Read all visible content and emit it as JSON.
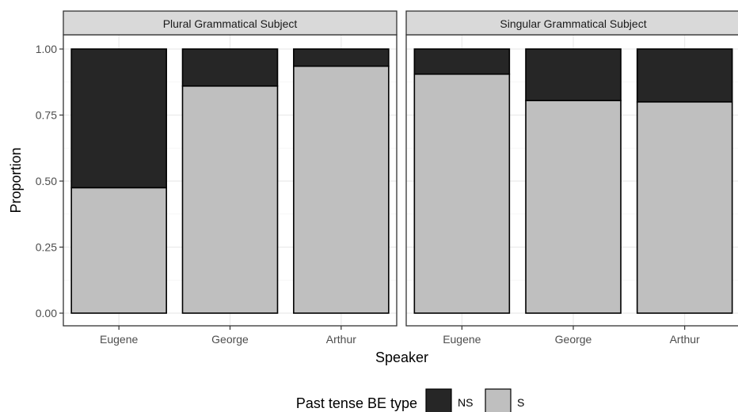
{
  "chart_data": {
    "type": "bar",
    "stacked": true,
    "xlabel": "Speaker",
    "ylabel": "Proportion",
    "ylim": [
      0,
      1
    ],
    "yticks": [
      "0.00",
      "0.25",
      "0.50",
      "0.75",
      "1.00"
    ],
    "categories": [
      "Eugene",
      "George",
      "Arthur"
    ],
    "legend": {
      "title": "Past tense BE type",
      "position": "bottom",
      "entries": [
        {
          "label": "NS",
          "color": "#262626"
        },
        {
          "label": "S",
          "color": "#bfbfbf"
        }
      ]
    },
    "panels": [
      {
        "title": "Plural Grammatical Subject",
        "series": [
          {
            "name": "S",
            "color": "#bfbfbf",
            "values": [
              0.475,
              0.86,
              0.935
            ]
          },
          {
            "name": "NS",
            "color": "#262626",
            "values": [
              0.525,
              0.14,
              0.065
            ]
          }
        ]
      },
      {
        "title": "Singular Grammatical Subject",
        "series": [
          {
            "name": "S",
            "color": "#bfbfbf",
            "values": [
              0.905,
              0.805,
              0.8
            ]
          },
          {
            "name": "NS",
            "color": "#262626",
            "values": [
              0.095,
              0.195,
              0.2
            ]
          }
        ]
      }
    ],
    "grid": true,
    "theme": "bw"
  }
}
